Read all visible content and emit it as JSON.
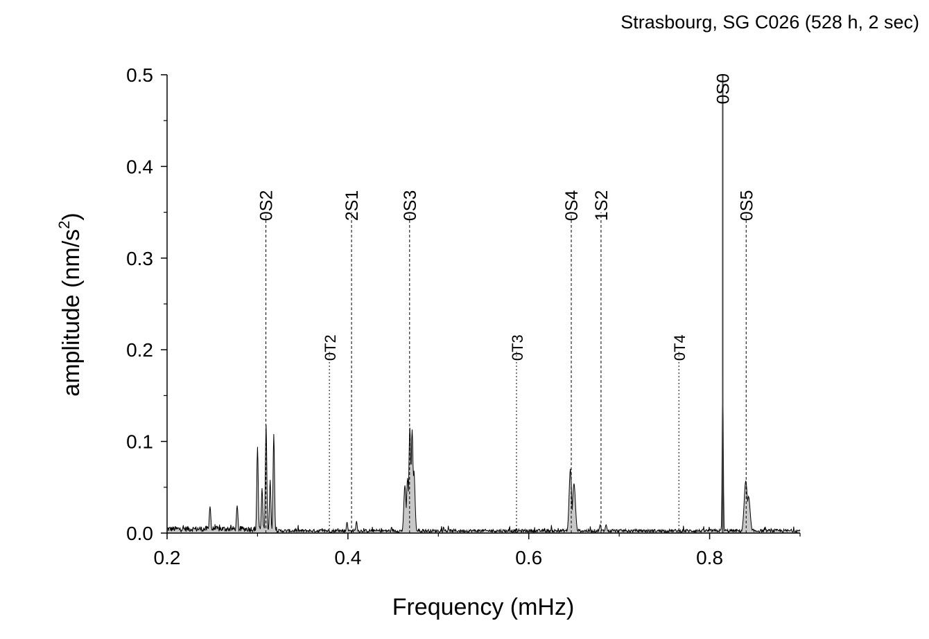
{
  "chart_data": {
    "type": "area",
    "title": "Strasbourg, SG C026 (528 h, 2 sec)",
    "xlabel": "Frequency (mHz)",
    "ylabel_main": "amplitude (nm/s",
    "ylabel_sup": "2",
    "ylabel_close": ")",
    "xlim": [
      0.2,
      0.9
    ],
    "ylim": [
      0.0,
      0.5
    ],
    "x_ticks": [
      0.2,
      0.4,
      0.6,
      0.8
    ],
    "x_tick_labels": [
      "0.2",
      "0.4",
      "0.6",
      "0.8"
    ],
    "x_minor_ticks": [
      0.3,
      0.5,
      0.7,
      0.9
    ],
    "y_ticks": [
      0.0,
      0.1,
      0.2,
      0.3,
      0.4,
      0.5
    ],
    "y_tick_labels": [
      "0.0",
      "0.1",
      "0.2",
      "0.3",
      "0.4",
      "0.5"
    ],
    "y_minor_ticks": [
      0.05,
      0.15,
      0.25,
      0.35,
      0.45
    ],
    "fill_color": "#c8c8c8",
    "line_color": "#000000",
    "peaks": [
      {
        "f": 0.2475,
        "a": 0.029,
        "w": 0.0009
      },
      {
        "f": 0.2775,
        "a": 0.03,
        "w": 0.0009
      },
      {
        "f": 0.3,
        "a": 0.094,
        "w": 0.0008
      },
      {
        "f": 0.305,
        "a": 0.049,
        "w": 0.0008
      },
      {
        "f": 0.3095,
        "a": 0.118,
        "w": 0.0008
      },
      {
        "f": 0.314,
        "a": 0.058,
        "w": 0.0008
      },
      {
        "f": 0.318,
        "a": 0.108,
        "w": 0.0008
      },
      {
        "f": 0.399,
        "a": 0.012,
        "w": 0.0008
      },
      {
        "f": 0.4095,
        "a": 0.013,
        "w": 0.0008
      },
      {
        "f": 0.463,
        "a": 0.052,
        "w": 0.0012
      },
      {
        "f": 0.466,
        "a": 0.06,
        "w": 0.0012
      },
      {
        "f": 0.4685,
        "a": 0.115,
        "w": 0.0011
      },
      {
        "f": 0.471,
        "a": 0.113,
        "w": 0.0011
      },
      {
        "f": 0.473,
        "a": 0.068,
        "w": 0.0012
      },
      {
        "f": 0.646,
        "a": 0.07,
        "w": 0.0014
      },
      {
        "f": 0.65,
        "a": 0.054,
        "w": 0.0016
      },
      {
        "f": 0.679,
        "a": 0.009,
        "w": 0.001
      },
      {
        "f": 0.6855,
        "a": 0.009,
        "w": 0.001
      },
      {
        "f": 0.8145,
        "a": 0.18,
        "w": 0.0006
      },
      {
        "f": 0.84,
        "a": 0.057,
        "w": 0.0018
      },
      {
        "f": 0.843,
        "a": 0.04,
        "w": 0.0018
      }
    ],
    "main_line": {
      "f": 0.8145,
      "a": 0.5
    },
    "modes": [
      {
        "label": "0S2",
        "f": 0.3093,
        "line_top": 0.35,
        "style": "dashed"
      },
      {
        "label": "2S1",
        "f": 0.404,
        "line_top": 0.35,
        "style": "dashed"
      },
      {
        "label": "0S3",
        "f": 0.4682,
        "line_top": 0.35,
        "style": "dashed"
      },
      {
        "label": "0S4",
        "f": 0.647,
        "line_top": 0.35,
        "style": "dashed"
      },
      {
        "label": "1S2",
        "f": 0.6799,
        "line_top": 0.35,
        "style": "dashed"
      },
      {
        "label": "0S5",
        "f": 0.8404,
        "line_top": 0.35,
        "style": "dashed"
      },
      {
        "label": "0T2",
        "f": 0.3795,
        "line_top": 0.2,
        "style": "dotted"
      },
      {
        "label": "0T3",
        "f": 0.5864,
        "line_top": 0.2,
        "style": "dotted"
      },
      {
        "label": "0T4",
        "f": 0.766,
        "line_top": 0.2,
        "style": "dotted"
      },
      {
        "label": "0S0",
        "f": 0.8145,
        "line_top": 0.5,
        "style": "solid"
      }
    ]
  }
}
